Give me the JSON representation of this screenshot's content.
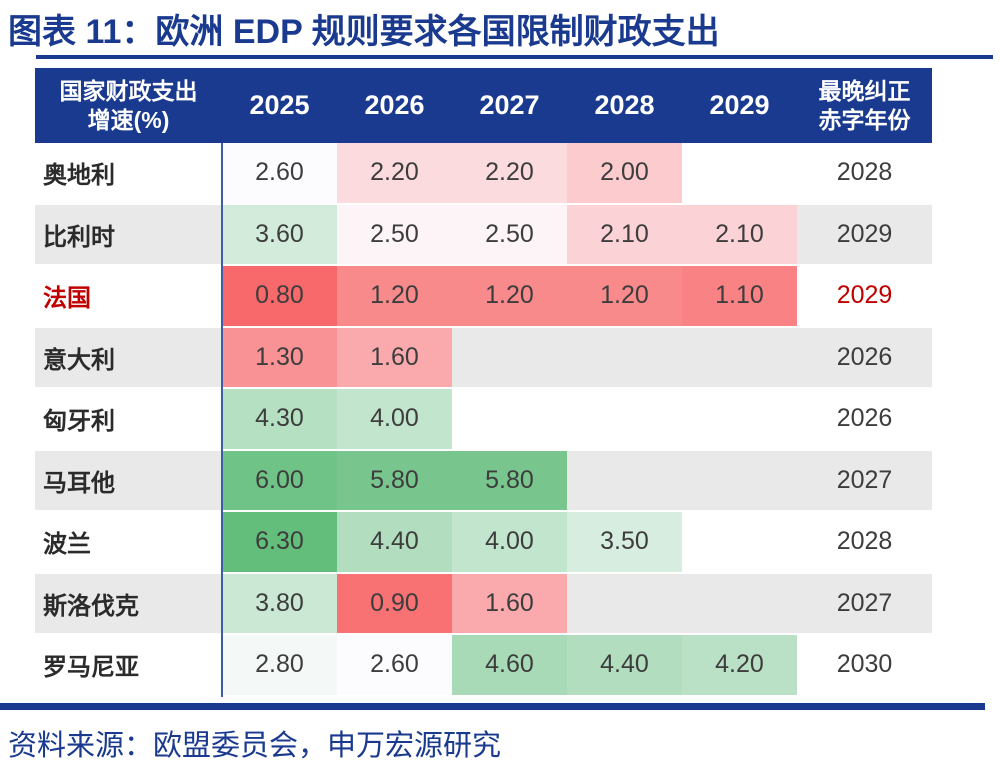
{
  "page": {
    "title": "图表 11：欧洲 EDP 规则要求各国限制财政支出",
    "source": "资料来源：欧盟委员会，申万宏源研究",
    "accent_color": "#1A3A8F",
    "highlight_color": "#C00000",
    "alt_row_color": "#E9E9E9"
  },
  "chart_data": {
    "type": "table",
    "title": "欧洲 EDP 规则要求各国限制财政支出",
    "header": {
      "country_line1": "国家财政支出",
      "country_line2": "增速(%)",
      "years": [
        "2025",
        "2026",
        "2027",
        "2028",
        "2029"
      ],
      "deadline_line1": "最晚纠正",
      "deadline_line2": "赤字年份"
    },
    "rows": [
      {
        "country": "奥地利",
        "values": [
          2.6,
          2.2,
          2.2,
          2.0,
          null
        ],
        "deadline": "2028",
        "highlight": false
      },
      {
        "country": "比利时",
        "values": [
          3.6,
          2.5,
          2.5,
          2.1,
          2.1
        ],
        "deadline": "2029",
        "highlight": false
      },
      {
        "country": "法国",
        "values": [
          0.8,
          1.2,
          1.2,
          1.2,
          1.1
        ],
        "deadline": "2029",
        "highlight": true
      },
      {
        "country": "意大利",
        "values": [
          1.3,
          1.6,
          null,
          null,
          null
        ],
        "deadline": "2026",
        "highlight": false
      },
      {
        "country": "匈牙利",
        "values": [
          4.3,
          4.0,
          null,
          null,
          null
        ],
        "deadline": "2026",
        "highlight": false
      },
      {
        "country": "马耳他",
        "values": [
          6.0,
          5.8,
          5.8,
          null,
          null
        ],
        "deadline": "2027",
        "highlight": false
      },
      {
        "country": "波兰",
        "values": [
          6.3,
          4.4,
          4.0,
          3.5,
          null
        ],
        "deadline": "2028",
        "highlight": false
      },
      {
        "country": "斯洛伐克",
        "values": [
          3.8,
          0.9,
          1.6,
          null,
          null
        ],
        "deadline": "2027",
        "highlight": false
      },
      {
        "country": "罗马尼亚",
        "values": [
          2.8,
          2.6,
          4.6,
          4.4,
          4.2
        ],
        "deadline": "2030",
        "highlight": false
      }
    ],
    "color_scale": {
      "type": "diverging-red-white-green",
      "min_value": 0.8,
      "min_color": "#F8696B",
      "mid_value": 2.6,
      "mid_color": "#FCFCFF",
      "max_value": 6.3,
      "max_color": "#63BE7B"
    },
    "layout": {
      "value_decimals": 2,
      "grid": false,
      "legend": false
    }
  }
}
